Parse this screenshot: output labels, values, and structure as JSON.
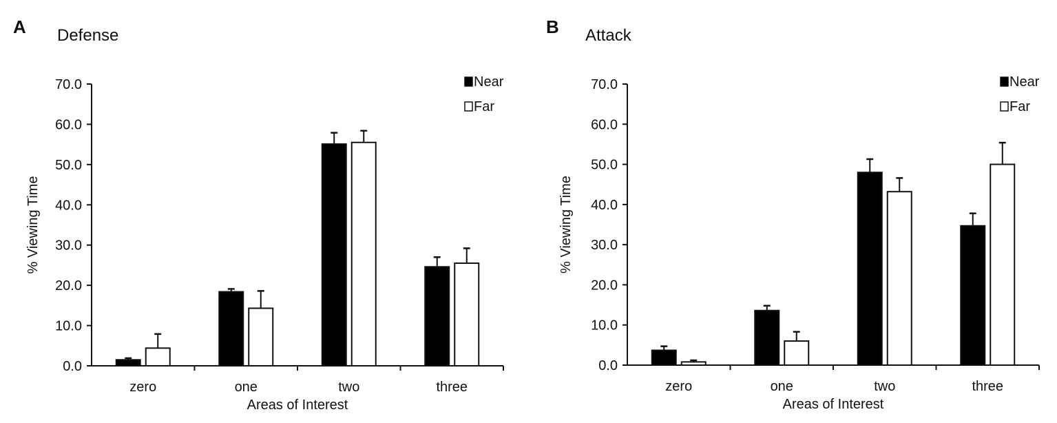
{
  "chart_data": [
    {
      "panel": "A",
      "title": "Defense",
      "type": "bar",
      "xlabel": "Areas of Interest",
      "ylabel": "% Viewing Time",
      "ylim": [
        0,
        70
      ],
      "yticks": [
        "0.0",
        "10.0",
        "20.0",
        "30.0",
        "40.0",
        "50.0",
        "60.0",
        "70.0"
      ],
      "categories": [
        "zero",
        "one",
        "two",
        "three"
      ],
      "legend": {
        "position": "top-right",
        "entries": [
          "Near",
          "Far"
        ]
      },
      "grid": false,
      "series": [
        {
          "name": "Near",
          "color": "#000000",
          "values": [
            1.5,
            18.4,
            55.1,
            24.6
          ],
          "error": [
            0.4,
            0.7,
            2.8,
            2.4
          ]
        },
        {
          "name": "Far",
          "color": "#ffffff",
          "values": [
            4.4,
            14.3,
            55.5,
            25.5
          ],
          "error": [
            3.5,
            4.3,
            2.9,
            3.7
          ]
        }
      ]
    },
    {
      "panel": "B",
      "title": "Attack",
      "type": "bar",
      "xlabel": "Areas of Interest",
      "ylabel": "% Viewing Time",
      "ylim": [
        0,
        70
      ],
      "yticks": [
        "0.0",
        "10.0",
        "20.0",
        "30.0",
        "40.0",
        "50.0",
        "60.0",
        "70.0"
      ],
      "categories": [
        "zero",
        "one",
        "two",
        "three"
      ],
      "legend": {
        "position": "top-right",
        "entries": [
          "Near",
          "Far"
        ]
      },
      "grid": false,
      "series": [
        {
          "name": "Near",
          "color": "#000000",
          "values": [
            3.7,
            13.6,
            48.0,
            34.7
          ],
          "error": [
            1.0,
            1.2,
            3.3,
            3.1
          ]
        },
        {
          "name": "Far",
          "color": "#ffffff",
          "values": [
            0.8,
            6.0,
            43.2,
            50.0
          ],
          "error": [
            0.4,
            2.3,
            3.4,
            5.4
          ]
        }
      ]
    }
  ]
}
